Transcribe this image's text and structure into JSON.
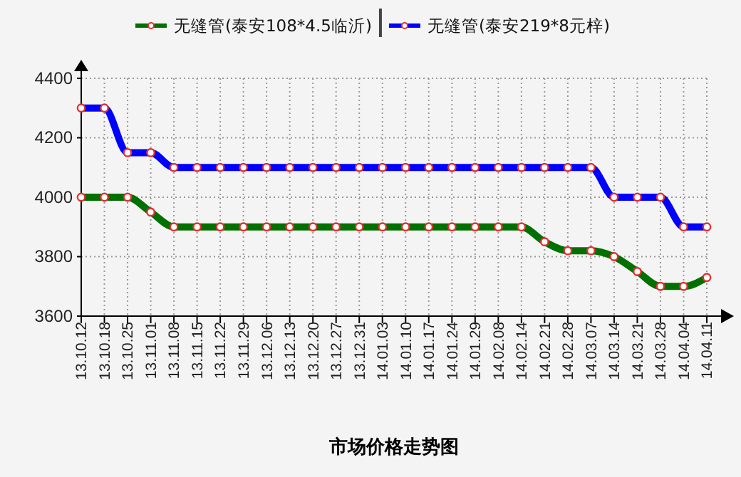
{
  "chart_data": {
    "type": "line",
    "title": "市场价格走势图",
    "categories": [
      "13.10.12",
      "13.10.18",
      "13.10.25",
      "13.11.01",
      "13.11.08",
      "13.11.15",
      "13.11.22",
      "13.11.29",
      "13.12.06",
      "13.12.13",
      "13.12.20",
      "13.12.27",
      "13.12.31",
      "14.01.03",
      "14.01.10",
      "14.01.17",
      "14.01.24",
      "14.01.29",
      "14.02.08",
      "14.02.14",
      "14.02.21",
      "14.02.28",
      "14.03.07",
      "14.03.14",
      "14.03.21",
      "14.03.28",
      "14.04.04",
      "14.04.11"
    ],
    "series": [
      {
        "name": "无缝管(泰安108*4.5临沂)",
        "color": "#007000",
        "values": [
          4000,
          4000,
          4000,
          3950,
          3900,
          3900,
          3900,
          3900,
          3900,
          3900,
          3900,
          3900,
          3900,
          3900,
          3900,
          3900,
          3900,
          3900,
          3900,
          3900,
          3850,
          3820,
          3820,
          3800,
          3750,
          3700,
          3700,
          3730
        ]
      },
      {
        "name": "无缝管(泰安219*8元梓)",
        "color": "#0000ff",
        "values": [
          4300,
          4300,
          4150,
          4150,
          4100,
          4100,
          4100,
          4100,
          4100,
          4100,
          4100,
          4100,
          4100,
          4100,
          4100,
          4100,
          4100,
          4100,
          4100,
          4100,
          4100,
          4100,
          4100,
          4000,
          4000,
          4000,
          3900,
          3900
        ]
      }
    ],
    "ylim": [
      3600,
      4400
    ],
    "yticks": [
      3600,
      3800,
      4000,
      4200,
      4400
    ],
    "grid": true,
    "legend": "top",
    "marker": "circle",
    "line_style": "solid"
  }
}
